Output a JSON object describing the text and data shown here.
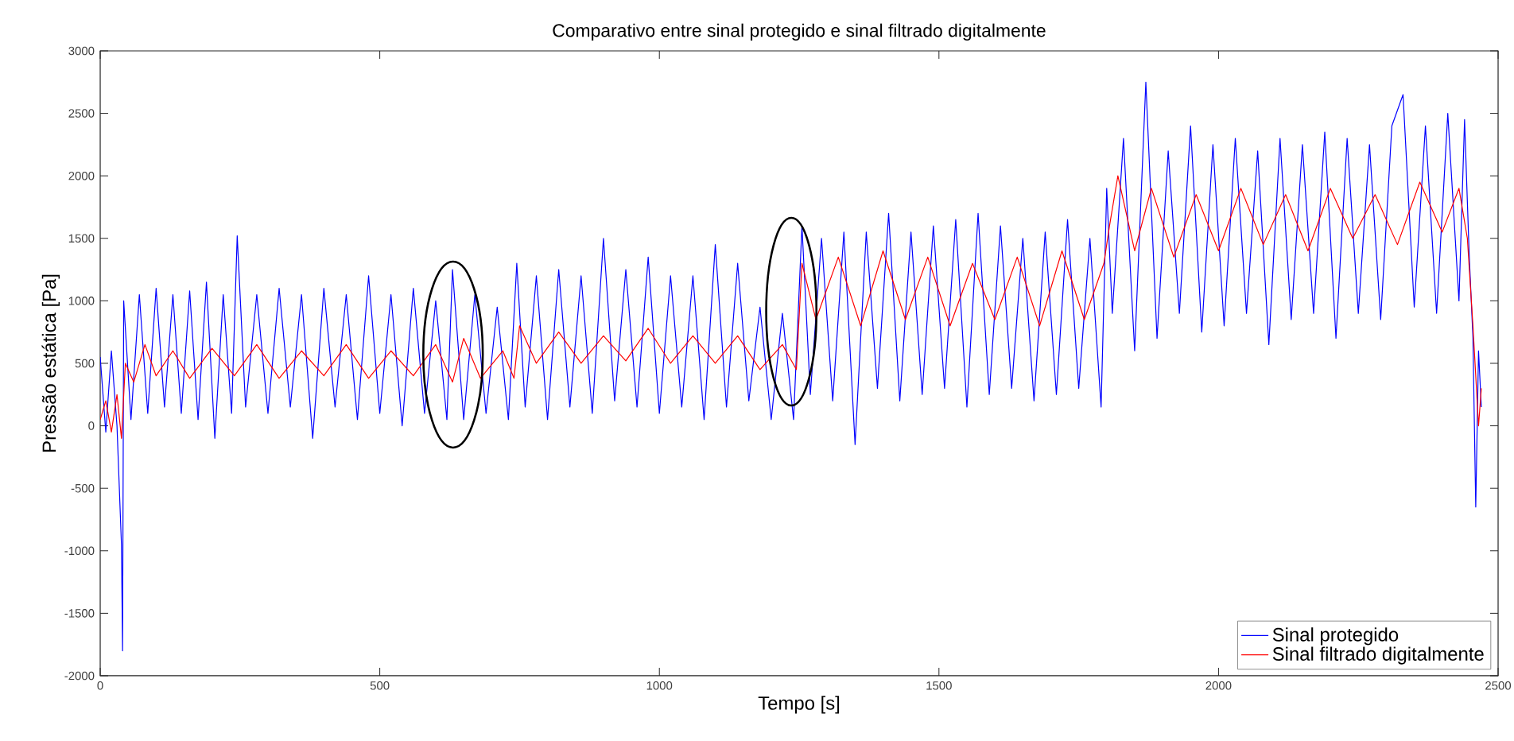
{
  "chart_data": {
    "type": "line",
    "title": "Comparativo entre sinal protegido e sinal filtrado digitalmente",
    "xlabel": "Tempo [s]",
    "ylabel": "Pressão estática [Pa]",
    "xlim": [
      0,
      2500
    ],
    "ylim": [
      -2000,
      3000
    ],
    "xticks": [
      0,
      500,
      1000,
      1500,
      2000,
      2500
    ],
    "yticks": [
      -2000,
      -1500,
      -1000,
      -500,
      0,
      500,
      1000,
      1500,
      2000,
      2500,
      3000
    ],
    "grid": false,
    "legend": "bottom right",
    "line_style": "solid",
    "marker": "none",
    "series": [
      {
        "name": "Sinal protegido",
        "color": "#0000ff",
        "x": [
          0,
          10,
          20,
          30,
          38,
          40,
          42,
          55,
          70,
          85,
          100,
          115,
          130,
          145,
          160,
          175,
          190,
          205,
          220,
          235,
          245,
          260,
          280,
          300,
          320,
          340,
          360,
          380,
          400,
          420,
          440,
          460,
          480,
          500,
          520,
          540,
          560,
          580,
          600,
          620,
          630,
          650,
          670,
          690,
          710,
          730,
          745,
          760,
          780,
          800,
          820,
          840,
          860,
          880,
          900,
          920,
          940,
          960,
          980,
          1000,
          1020,
          1040,
          1060,
          1080,
          1100,
          1120,
          1140,
          1160,
          1180,
          1200,
          1220,
          1240,
          1255,
          1270,
          1290,
          1310,
          1330,
          1350,
          1370,
          1390,
          1410,
          1430,
          1450,
          1470,
          1490,
          1510,
          1530,
          1550,
          1570,
          1590,
          1610,
          1630,
          1650,
          1670,
          1690,
          1710,
          1730,
          1750,
          1770,
          1790,
          1800,
          1810,
          1830,
          1850,
          1870,
          1890,
          1910,
          1930,
          1950,
          1970,
          1990,
          2010,
          2030,
          2050,
          2070,
          2090,
          2110,
          2130,
          2150,
          2170,
          2190,
          2210,
          2230,
          2250,
          2270,
          2290,
          2310,
          2330,
          2350,
          2370,
          2390,
          2410,
          2430,
          2440,
          2448,
          2455,
          2460,
          2465,
          2470
        ],
        "values": [
          550,
          -50,
          600,
          0,
          -950,
          -1800,
          1000,
          50,
          1050,
          100,
          1100,
          150,
          1050,
          100,
          1080,
          50,
          1150,
          -100,
          1050,
          100,
          1520,
          150,
          1050,
          100,
          1100,
          150,
          1050,
          -100,
          1100,
          150,
          1050,
          50,
          1200,
          100,
          1050,
          0,
          1100,
          100,
          1000,
          50,
          1250,
          50,
          1050,
          100,
          950,
          50,
          1300,
          150,
          1200,
          50,
          1250,
          150,
          1200,
          100,
          1500,
          200,
          1250,
          150,
          1350,
          100,
          1200,
          150,
          1200,
          50,
          1450,
          150,
          1300,
          200,
          950,
          50,
          900,
          50,
          1600,
          250,
          1500,
          200,
          1550,
          -150,
          1550,
          300,
          1700,
          200,
          1550,
          250,
          1600,
          300,
          1650,
          150,
          1700,
          250,
          1600,
          300,
          1500,
          200,
          1550,
          250,
          1650,
          300,
          1500,
          150,
          1900,
          900,
          2300,
          600,
          2750,
          700,
          2200,
          900,
          2400,
          750,
          2250,
          800,
          2300,
          900,
          2200,
          650,
          2300,
          850,
          2250,
          900,
          2350,
          700,
          2300,
          900,
          2250,
          850,
          2400,
          2650,
          950,
          2400,
          900,
          2500,
          1000,
          2450,
          1400,
          700,
          -650,
          600,
          150
        ]
      },
      {
        "name": "Sinal filtrado digitalmente",
        "color": "#ff0000",
        "x": [
          0,
          10,
          20,
          30,
          38,
          45,
          60,
          80,
          100,
          130,
          160,
          200,
          240,
          280,
          320,
          360,
          400,
          440,
          480,
          520,
          560,
          600,
          630,
          650,
          680,
          720,
          740,
          750,
          780,
          820,
          860,
          900,
          940,
          980,
          1020,
          1060,
          1100,
          1140,
          1180,
          1220,
          1245,
          1255,
          1280,
          1320,
          1360,
          1400,
          1440,
          1480,
          1520,
          1560,
          1600,
          1640,
          1680,
          1720,
          1760,
          1795,
          1805,
          1820,
          1850,
          1880,
          1920,
          1960,
          2000,
          2040,
          2080,
          2120,
          2160,
          2200,
          2240,
          2280,
          2320,
          2360,
          2400,
          2430,
          2445,
          2455,
          2465,
          2470
        ],
        "values": [
          50,
          200,
          -50,
          250,
          -100,
          500,
          350,
          650,
          400,
          600,
          380,
          620,
          400,
          650,
          380,
          600,
          400,
          650,
          380,
          600,
          400,
          650,
          350,
          700,
          380,
          600,
          380,
          800,
          500,
          750,
          500,
          720,
          520,
          780,
          500,
          720,
          500,
          720,
          450,
          650,
          450,
          1300,
          850,
          1350,
          800,
          1400,
          850,
          1350,
          800,
          1300,
          850,
          1350,
          800,
          1400,
          850,
          1300,
          1600,
          2000,
          1400,
          1900,
          1350,
          1850,
          1400,
          1900,
          1450,
          1850,
          1400,
          1900,
          1500,
          1850,
          1450,
          1950,
          1550,
          1900,
          1500,
          800,
          0,
          300
        ]
      }
    ]
  }
}
